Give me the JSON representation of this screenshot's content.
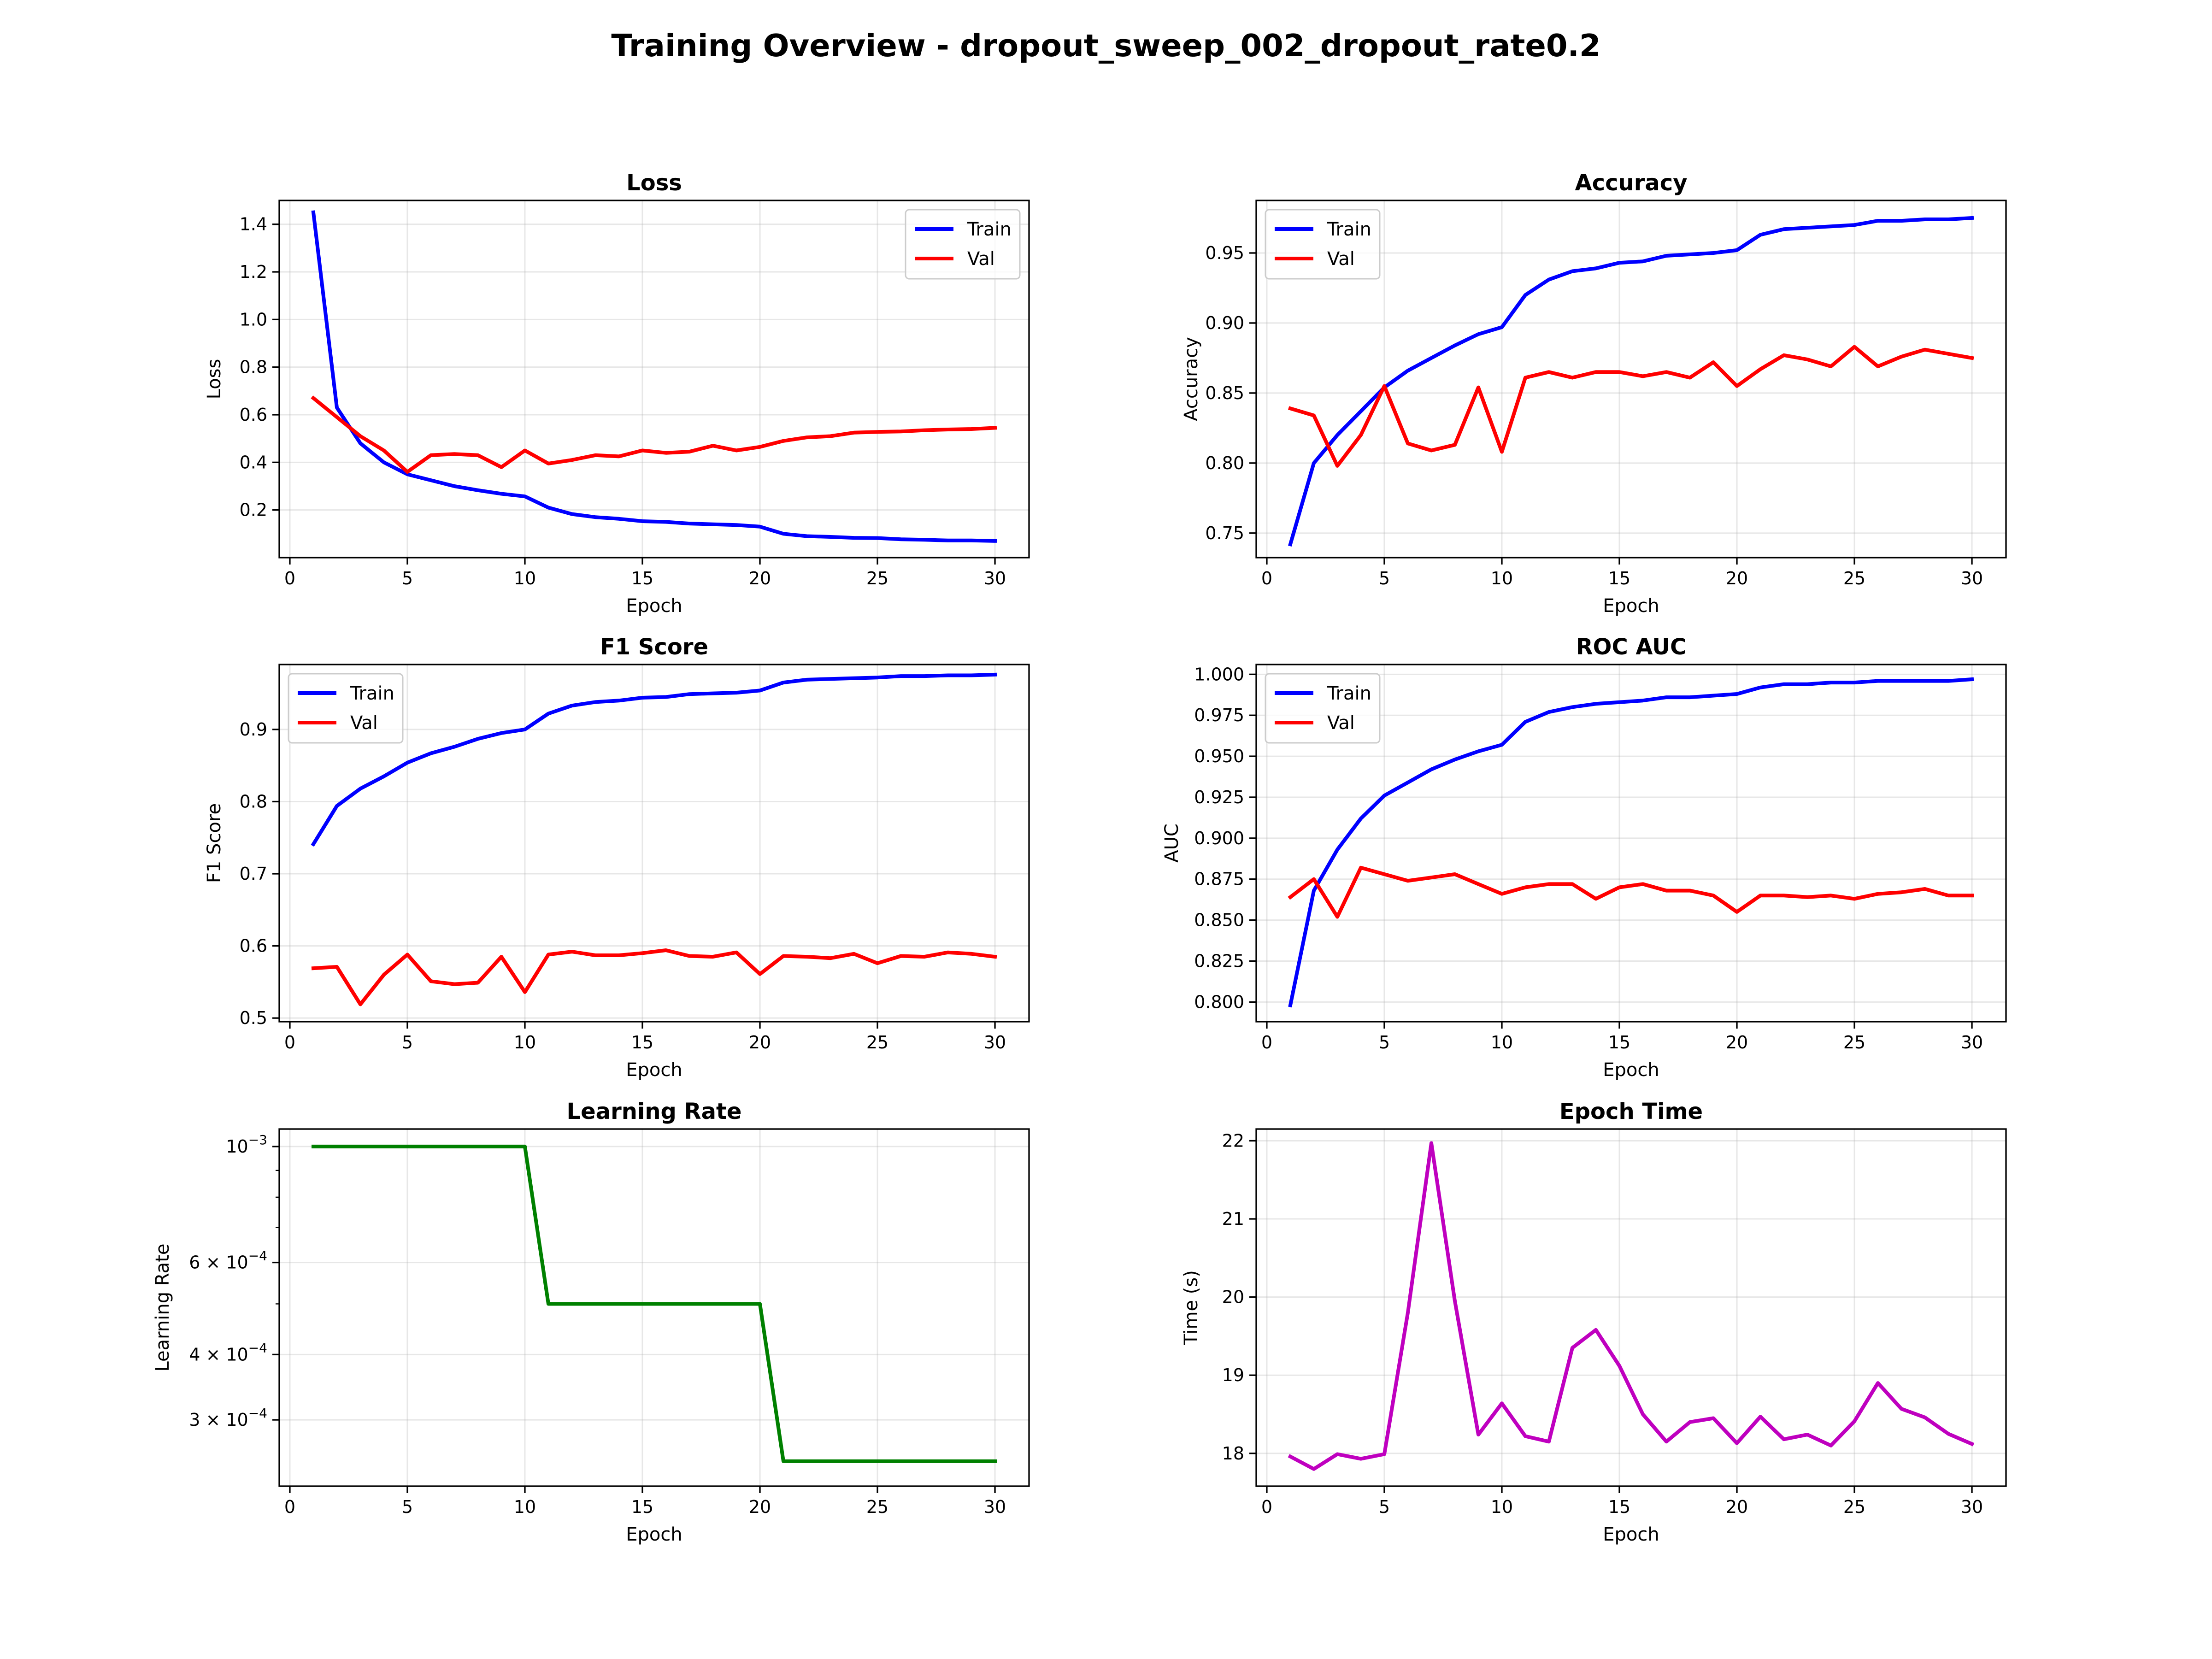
{
  "figure": {
    "title": "Training Overview - dropout_sweep_002_dropout_rate0.2"
  },
  "chart_data": [
    {
      "id": "loss",
      "type": "line",
      "title": "Loss",
      "xlabel": "Epoch",
      "ylabel": "Loss",
      "xlim": [
        -0.45,
        31.45
      ],
      "ylim": [
        0.0,
        1.5
      ],
      "xticks": [
        0,
        5,
        10,
        15,
        20,
        25,
        30
      ],
      "yticks": [
        0.2,
        0.4,
        0.6,
        0.8,
        1.0,
        1.2,
        1.4
      ],
      "ytick_labels": [
        "0.2",
        "0.4",
        "0.6",
        "0.8",
        "1.0",
        "1.2",
        "1.4"
      ],
      "grid": true,
      "legend": "upper right",
      "x": [
        1,
        2,
        3,
        4,
        5,
        6,
        7,
        8,
        9,
        10,
        11,
        12,
        13,
        14,
        15,
        16,
        17,
        18,
        19,
        20,
        21,
        22,
        23,
        24,
        25,
        26,
        27,
        28,
        29,
        30
      ],
      "series": [
        {
          "name": "Train",
          "color": "#0000ff",
          "values": [
            1.45,
            0.63,
            0.48,
            0.4,
            0.35,
            0.325,
            0.3,
            0.283,
            0.268,
            0.257,
            0.21,
            0.183,
            0.17,
            0.163,
            0.153,
            0.15,
            0.143,
            0.14,
            0.137,
            0.13,
            0.1,
            0.09,
            0.087,
            0.083,
            0.082,
            0.077,
            0.075,
            0.072,
            0.072,
            0.07
          ]
        },
        {
          "name": "Val",
          "color": "#ff0000",
          "values": [
            0.67,
            0.59,
            0.51,
            0.45,
            0.36,
            0.43,
            0.435,
            0.43,
            0.38,
            0.45,
            0.395,
            0.41,
            0.43,
            0.425,
            0.45,
            0.44,
            0.445,
            0.47,
            0.45,
            0.465,
            0.49,
            0.505,
            0.51,
            0.525,
            0.528,
            0.53,
            0.535,
            0.538,
            0.54,
            0.545
          ]
        }
      ]
    },
    {
      "id": "accuracy",
      "type": "line",
      "title": "Accuracy",
      "xlabel": "Epoch",
      "ylabel": "Accuracy",
      "xlim": [
        -0.45,
        31.45
      ],
      "ylim": [
        0.7325,
        0.9875
      ],
      "xticks": [
        0,
        5,
        10,
        15,
        20,
        25,
        30
      ],
      "yticks": [
        0.75,
        0.8,
        0.85,
        0.9,
        0.95
      ],
      "ytick_labels": [
        "0.75",
        "0.80",
        "0.85",
        "0.90",
        "0.95"
      ],
      "grid": true,
      "legend": "upper left",
      "x": [
        1,
        2,
        3,
        4,
        5,
        6,
        7,
        8,
        9,
        10,
        11,
        12,
        13,
        14,
        15,
        16,
        17,
        18,
        19,
        20,
        21,
        22,
        23,
        24,
        25,
        26,
        27,
        28,
        29,
        30
      ],
      "series": [
        {
          "name": "Train",
          "color": "#0000ff",
          "values": [
            0.742,
            0.8,
            0.82,
            0.837,
            0.854,
            0.866,
            0.875,
            0.884,
            0.892,
            0.897,
            0.92,
            0.931,
            0.937,
            0.939,
            0.943,
            0.944,
            0.948,
            0.949,
            0.95,
            0.952,
            0.963,
            0.967,
            0.968,
            0.969,
            0.97,
            0.973,
            0.973,
            0.974,
            0.974,
            0.975
          ]
        },
        {
          "name": "Val",
          "color": "#ff0000",
          "values": [
            0.839,
            0.834,
            0.798,
            0.82,
            0.855,
            0.814,
            0.809,
            0.813,
            0.854,
            0.808,
            0.861,
            0.865,
            0.861,
            0.865,
            0.865,
            0.862,
            0.865,
            0.861,
            0.872,
            0.855,
            0.867,
            0.877,
            0.874,
            0.869,
            0.883,
            0.869,
            0.876,
            0.881,
            0.878,
            0.875
          ]
        }
      ]
    },
    {
      "id": "f1",
      "type": "line",
      "title": "F1 Score",
      "xlabel": "Epoch",
      "ylabel": "F1 Score",
      "xlim": [
        -0.45,
        31.45
      ],
      "ylim": [
        0.495,
        0.99
      ],
      "xticks": [
        0,
        5,
        10,
        15,
        20,
        25,
        30
      ],
      "yticks": [
        0.5,
        0.6,
        0.7,
        0.8,
        0.9
      ],
      "ytick_labels": [
        "0.5",
        "0.6",
        "0.7",
        "0.8",
        "0.9"
      ],
      "grid": true,
      "legend": "upper left",
      "x": [
        1,
        2,
        3,
        4,
        5,
        6,
        7,
        8,
        9,
        10,
        11,
        12,
        13,
        14,
        15,
        16,
        17,
        18,
        19,
        20,
        21,
        22,
        23,
        24,
        25,
        26,
        27,
        28,
        29,
        30
      ],
      "series": [
        {
          "name": "Train",
          "color": "#0000ff",
          "values": [
            0.741,
            0.794,
            0.818,
            0.835,
            0.854,
            0.867,
            0.876,
            0.887,
            0.895,
            0.9,
            0.922,
            0.933,
            0.938,
            0.94,
            0.944,
            0.945,
            0.949,
            0.95,
            0.951,
            0.954,
            0.965,
            0.969,
            0.97,
            0.971,
            0.972,
            0.974,
            0.974,
            0.975,
            0.975,
            0.976
          ]
        },
        {
          "name": "Val",
          "color": "#ff0000",
          "values": [
            0.569,
            0.571,
            0.519,
            0.56,
            0.588,
            0.551,
            0.547,
            0.549,
            0.585,
            0.536,
            0.588,
            0.592,
            0.587,
            0.587,
            0.59,
            0.594,
            0.586,
            0.585,
            0.591,
            0.561,
            0.586,
            0.585,
            0.583,
            0.589,
            0.576,
            0.586,
            0.585,
            0.591,
            0.589,
            0.585
          ]
        }
      ]
    },
    {
      "id": "roc_auc",
      "type": "line",
      "title": "ROC AUC",
      "xlabel": "Epoch",
      "ylabel": "AUC",
      "xlim": [
        -0.45,
        31.45
      ],
      "ylim": [
        0.788,
        1.006
      ],
      "xticks": [
        0,
        5,
        10,
        15,
        20,
        25,
        30
      ],
      "yticks": [
        0.8,
        0.825,
        0.85,
        0.875,
        0.9,
        0.925,
        0.95,
        0.975,
        1.0
      ],
      "ytick_labels": [
        "0.800",
        "0.825",
        "0.850",
        "0.875",
        "0.900",
        "0.925",
        "0.950",
        "0.975",
        "1.000"
      ],
      "grid": true,
      "legend": "upper left",
      "x": [
        1,
        2,
        3,
        4,
        5,
        6,
        7,
        8,
        9,
        10,
        11,
        12,
        13,
        14,
        15,
        16,
        17,
        18,
        19,
        20,
        21,
        22,
        23,
        24,
        25,
        26,
        27,
        28,
        29,
        30
      ],
      "series": [
        {
          "name": "Train",
          "color": "#0000ff",
          "values": [
            0.798,
            0.868,
            0.893,
            0.912,
            0.926,
            0.934,
            0.942,
            0.948,
            0.953,
            0.957,
            0.971,
            0.977,
            0.98,
            0.982,
            0.983,
            0.984,
            0.986,
            0.986,
            0.987,
            0.988,
            0.992,
            0.994,
            0.994,
            0.995,
            0.995,
            0.996,
            0.996,
            0.996,
            0.996,
            0.997
          ]
        },
        {
          "name": "Val",
          "color": "#ff0000",
          "values": [
            0.864,
            0.875,
            0.852,
            0.882,
            0.878,
            0.874,
            0.876,
            0.878,
            0.872,
            0.866,
            0.87,
            0.872,
            0.872,
            0.863,
            0.87,
            0.872,
            0.868,
            0.868,
            0.865,
            0.855,
            0.865,
            0.865,
            0.864,
            0.865,
            0.863,
            0.866,
            0.867,
            0.869,
            0.865,
            0.865
          ]
        }
      ]
    },
    {
      "id": "learning_rate",
      "type": "line",
      "title": "Learning Rate",
      "xlabel": "Epoch",
      "ylabel": "Learning Rate",
      "yscale": "log",
      "xlim": [
        -0.45,
        31.45
      ],
      "ylim": [
        0.000224,
        0.00108
      ],
      "xticks": [
        0,
        5,
        10,
        15,
        20,
        25,
        30
      ],
      "yticks": [
        0.001,
        0.0006,
        0.0004,
        0.0003
      ],
      "ytick_labels": [
        {
          "base": "10",
          "exp": "−3"
        },
        {
          "base": "6 × 10",
          "exp": "−4"
        },
        {
          "base": "4 × 10",
          "exp": "−4"
        },
        {
          "base": "3 × 10",
          "exp": "−4"
        }
      ],
      "minor_yticks": [
        0.0009,
        0.0008,
        0.0007,
        0.0005
      ],
      "grid": true,
      "legend": "none",
      "x": [
        1,
        2,
        3,
        4,
        5,
        6,
        7,
        8,
        9,
        10,
        11,
        12,
        13,
        14,
        15,
        16,
        17,
        18,
        19,
        20,
        21,
        22,
        23,
        24,
        25,
        26,
        27,
        28,
        29,
        30
      ],
      "series": [
        {
          "color": "#008000",
          "values": [
            0.001,
            0.001,
            0.001,
            0.001,
            0.001,
            0.001,
            0.001,
            0.001,
            0.001,
            0.001,
            0.0005,
            0.0005,
            0.0005,
            0.0005,
            0.0005,
            0.0005,
            0.0005,
            0.0005,
            0.0005,
            0.0005,
            0.00025,
            0.00025,
            0.00025,
            0.00025,
            0.00025,
            0.00025,
            0.00025,
            0.00025,
            0.00025,
            0.00025
          ]
        }
      ]
    },
    {
      "id": "epoch_time",
      "type": "line",
      "title": "Epoch Time",
      "xlabel": "Epoch",
      "ylabel": "Time (s)",
      "xlim": [
        -0.45,
        31.45
      ],
      "ylim": [
        17.58,
        22.15
      ],
      "xticks": [
        0,
        5,
        10,
        15,
        20,
        25,
        30
      ],
      "yticks": [
        18,
        19,
        20,
        21,
        22
      ],
      "ytick_labels": [
        "18",
        "19",
        "20",
        "21",
        "22"
      ],
      "grid": true,
      "legend": "none",
      "x": [
        1,
        2,
        3,
        4,
        5,
        6,
        7,
        8,
        9,
        10,
        11,
        12,
        13,
        14,
        15,
        16,
        17,
        18,
        19,
        20,
        21,
        22,
        23,
        24,
        25,
        26,
        27,
        28,
        29,
        30
      ],
      "series": [
        {
          "color": "#bf00bf",
          "values": [
            17.96,
            17.8,
            17.99,
            17.93,
            17.99,
            19.8,
            21.97,
            19.95,
            18.24,
            18.64,
            18.22,
            18.15,
            19.35,
            19.58,
            19.12,
            18.5,
            18.15,
            18.4,
            18.45,
            18.13,
            18.47,
            18.18,
            18.24,
            18.1,
            18.41,
            18.9,
            18.57,
            18.46,
            18.25,
            18.12
          ]
        }
      ]
    }
  ]
}
